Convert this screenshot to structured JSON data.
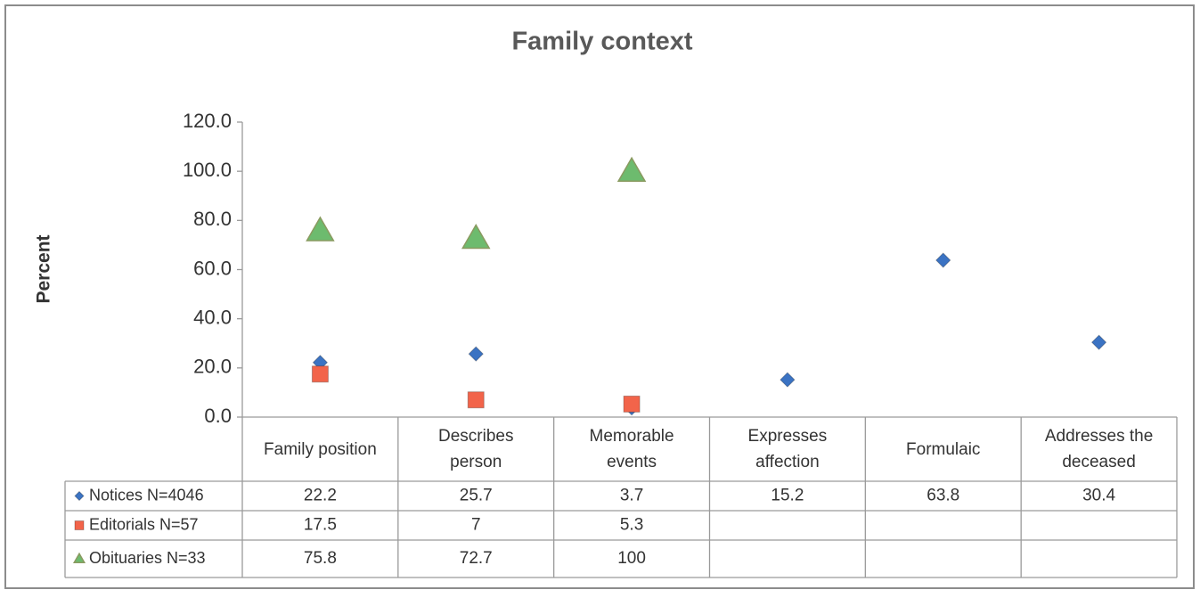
{
  "chart_data": {
    "type": "scatter",
    "title": "Family context",
    "y_label": "Percent",
    "categories": [
      "Family position",
      "Describes person",
      "Memorable events",
      "Expresses affection",
      "Formulaic",
      "Addresses the deceased"
    ],
    "series": [
      {
        "name": "Notices N=4046",
        "color": "#3b73c3",
        "marker": "diamond",
        "values": [
          22.2,
          25.7,
          3.7,
          15.2,
          63.8,
          30.4
        ]
      },
      {
        "name": "Editorials N=57",
        "color": "#f2644a",
        "marker": "square",
        "values": [
          17.5,
          7,
          5.3,
          null,
          null,
          null
        ]
      },
      {
        "name": "Obituaries N=33",
        "color": "#6dbb6e",
        "marker": "triangle",
        "values": [
          75.8,
          72.7,
          100,
          null,
          null,
          null
        ]
      }
    ],
    "ylim": [
      0,
      120
    ],
    "yticks": [
      {
        "value": 0,
        "label": "0.0"
      },
      {
        "value": 20,
        "label": "20.0"
      },
      {
        "value": 40,
        "label": "40.0"
      },
      {
        "value": 60,
        "label": "60.0"
      },
      {
        "value": 80,
        "label": "80.0"
      },
      {
        "value": 100,
        "label": "100.0"
      },
      {
        "value": 120,
        "label": "120.0"
      }
    ],
    "grid": false,
    "data_table": true
  }
}
